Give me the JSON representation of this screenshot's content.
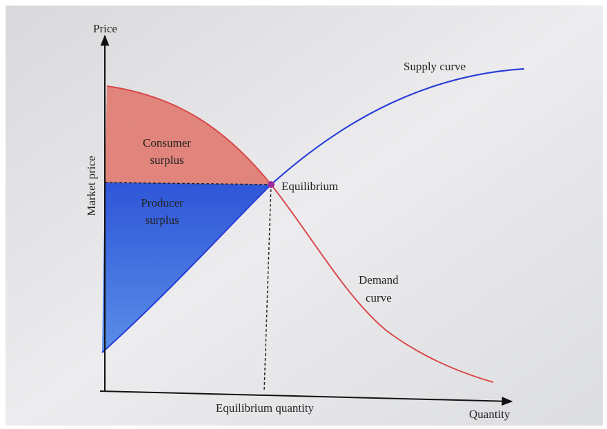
{
  "axes": {
    "y_label": "Price",
    "y_side_label": "Market price",
    "x_label": "Quantity",
    "x_marker_label": "Equilibrium quantity"
  },
  "curves": {
    "supply": "Supply curve",
    "demand": [
      "Demand",
      "curve"
    ]
  },
  "regions": {
    "consumer_surplus": [
      "Consumer",
      "surplus"
    ],
    "producer_surplus": [
      "Producer",
      "surplus"
    ]
  },
  "points": {
    "equilibrium": "Equilibrium"
  }
}
